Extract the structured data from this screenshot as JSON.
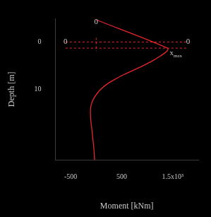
{
  "chart_data": {
    "type": "line",
    "x_label": "Moment [kNm]",
    "y_label": "Depth [m]",
    "color": "#e8262b",
    "xlim": [
      -800,
      2000
    ],
    "xticks": [
      -500,
      500,
      {
        "value": 1500,
        "label": "1.5x10³"
      }
    ],
    "ylim": [
      -5,
      25
    ],
    "yticks": [
      0,
      10
    ],
    "y_reversed": true,
    "grid": false,
    "series": [
      {
        "name": "Moment",
        "x": [
          0,
          1400,
          1380,
          1250,
          1100,
          920,
          720,
          520,
          350,
          200,
          90,
          10,
          -50,
          -90,
          -110,
          -110,
          -90,
          -70,
          -50,
          -35,
          -30
        ],
        "y": [
          -4.7,
          1.3,
          2,
          3,
          4,
          5,
          6,
          7,
          8,
          9,
          10,
          11,
          12,
          13,
          14,
          16,
          18,
          20,
          22,
          24,
          25
        ]
      }
    ],
    "reference_lines": {
      "line_style": "dashed",
      "y": [
        0,
        1.3
      ],
      "x": [
        0
      ]
    },
    "annotations": [
      {
        "text": "0",
        "x": 0,
        "y": -4.3
      },
      {
        "text": "0",
        "x": -600,
        "y": 0
      },
      {
        "text": "0",
        "x": 1800,
        "y": 0
      },
      {
        "text": "x",
        "subscript": "max",
        "x": 1560,
        "y": 2.3
      }
    ]
  }
}
